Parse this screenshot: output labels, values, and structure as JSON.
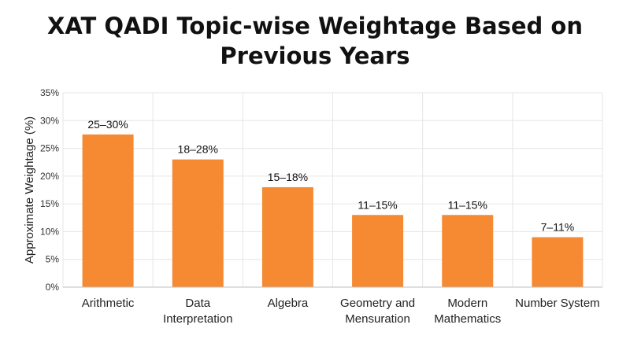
{
  "chart_data": {
    "type": "bar",
    "title_line1": "XAT QADI Topic-wise Weightage Based on",
    "title_line2": "Previous Years",
    "ylabel": "Approximate Weightage (%)",
    "xlabel": "",
    "ylim": [
      0,
      35
    ],
    "yticks": [
      "0%",
      "5%",
      "10%",
      "15%",
      "20%",
      "25%",
      "30%",
      "35%"
    ],
    "ytick_values": [
      0,
      5,
      10,
      15,
      20,
      25,
      30,
      35
    ],
    "grid": true,
    "bar_color": "#F58A33",
    "categories": [
      [
        "Arithmetic"
      ],
      [
        "Data",
        "Interpretation"
      ],
      [
        "Algebra"
      ],
      [
        "Geometry and",
        "Mensuration"
      ],
      [
        "Modern",
        "Mathematics"
      ],
      [
        "Number System"
      ]
    ],
    "values": [
      27.5,
      23,
      18,
      13,
      13,
      9
    ],
    "data_labels": [
      "25–30%",
      "18–28%",
      "15–18%",
      "11–15%",
      "11–15%",
      "7–11%"
    ]
  }
}
